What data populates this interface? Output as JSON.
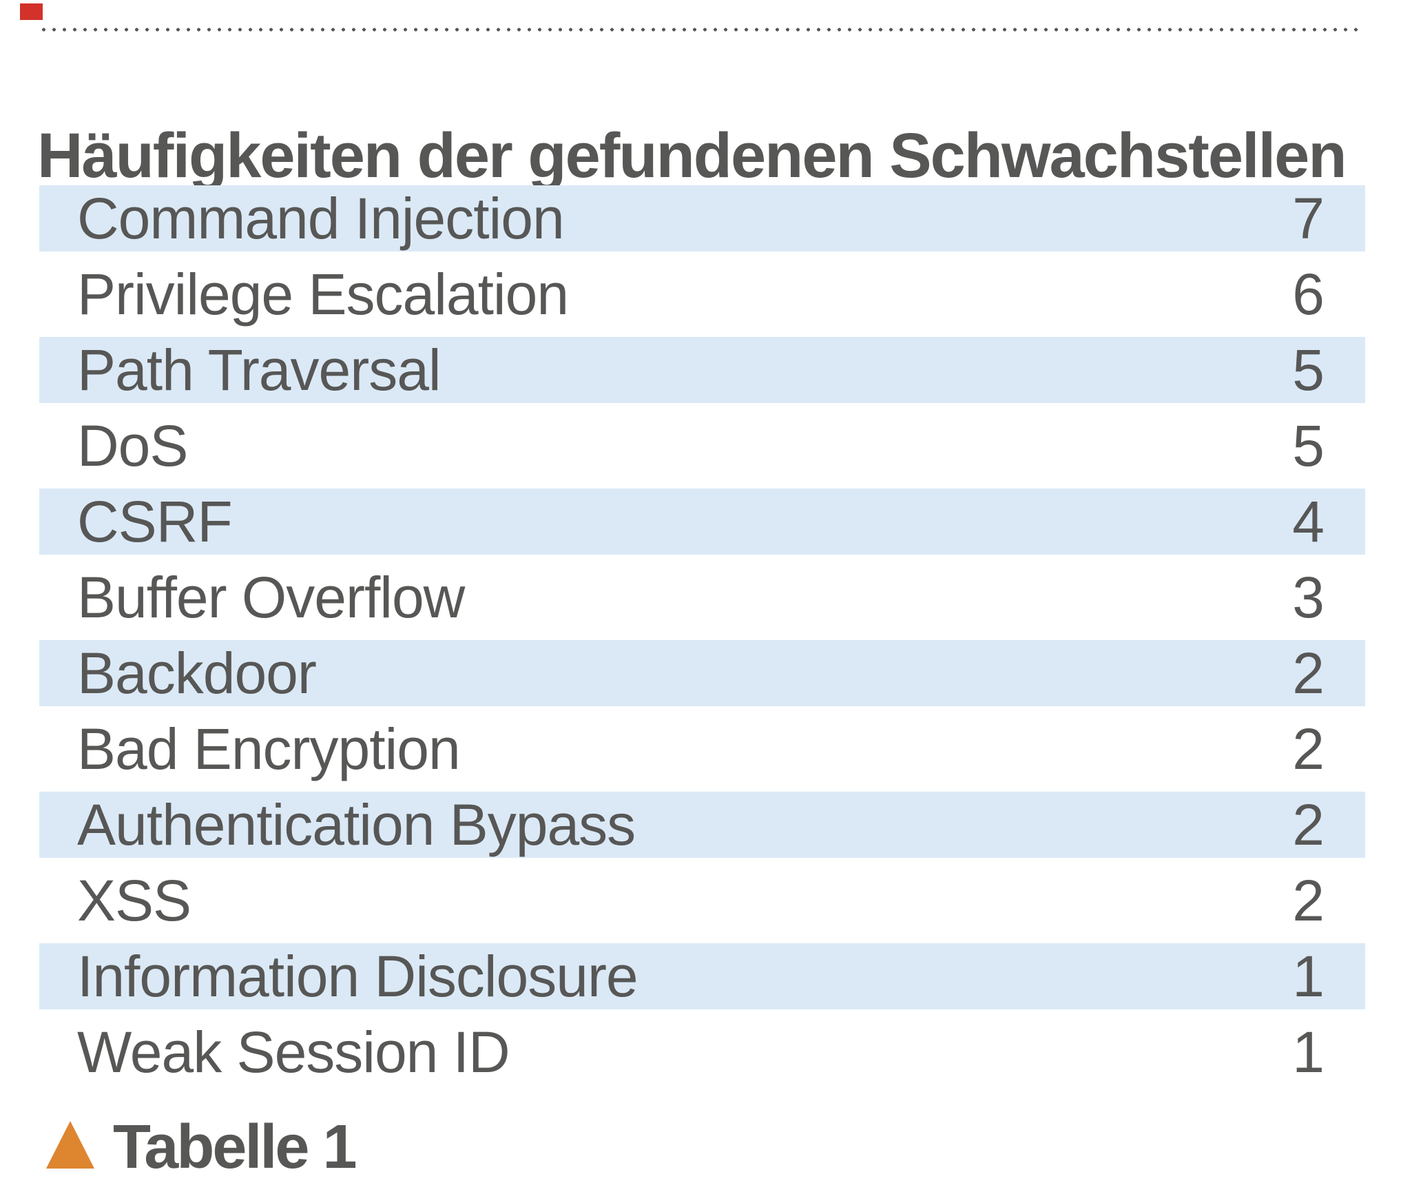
{
  "header": {
    "title": "Häufigkeiten der gefundenen Schwachstellen"
  },
  "table": {
    "rows": [
      {
        "label": "Command Injection",
        "value": "7"
      },
      {
        "label": "Privilege Escalation",
        "value": "6"
      },
      {
        "label": "Path Traversal",
        "value": "5"
      },
      {
        "label": "DoS",
        "value": "5"
      },
      {
        "label": "CSRF",
        "value": "4"
      },
      {
        "label": "Buffer Overflow",
        "value": "3"
      },
      {
        "label": "Backdoor",
        "value": "2"
      },
      {
        "label": "Bad Encryption",
        "value": "2"
      },
      {
        "label": "Authentication Bypass",
        "value": "2"
      },
      {
        "label": "XSS",
        "value": "2"
      },
      {
        "label": "Information Disclosure",
        "value": "1"
      },
      {
        "label": "Weak Session ID",
        "value": "1"
      }
    ]
  },
  "footer": {
    "caption": "Tabelle 1"
  },
  "colors": {
    "row_highlight_blue": "#dbe9f6",
    "text_gray": "#575756",
    "triangle_orange": "#de8530",
    "corner_marker_red": "#d2322a"
  },
  "chart_data": {
    "type": "table",
    "title": "Häufigkeiten der gefundenen Schwachstellen",
    "categories": [
      "Command Injection",
      "Privilege Escalation",
      "Path Traversal",
      "DoS",
      "CSRF",
      "Buffer Overflow",
      "Backdoor",
      "Bad Encryption",
      "Authentication Bypass",
      "XSS",
      "Information Disclosure",
      "Weak Session ID"
    ],
    "values": [
      7,
      6,
      5,
      5,
      4,
      3,
      2,
      2,
      2,
      2,
      1,
      1
    ],
    "caption": "Tabelle 1",
    "layout": "two columns: vulnerability name left, count right; alternating light-blue row stripes starting with first row; dotted rule above title"
  }
}
